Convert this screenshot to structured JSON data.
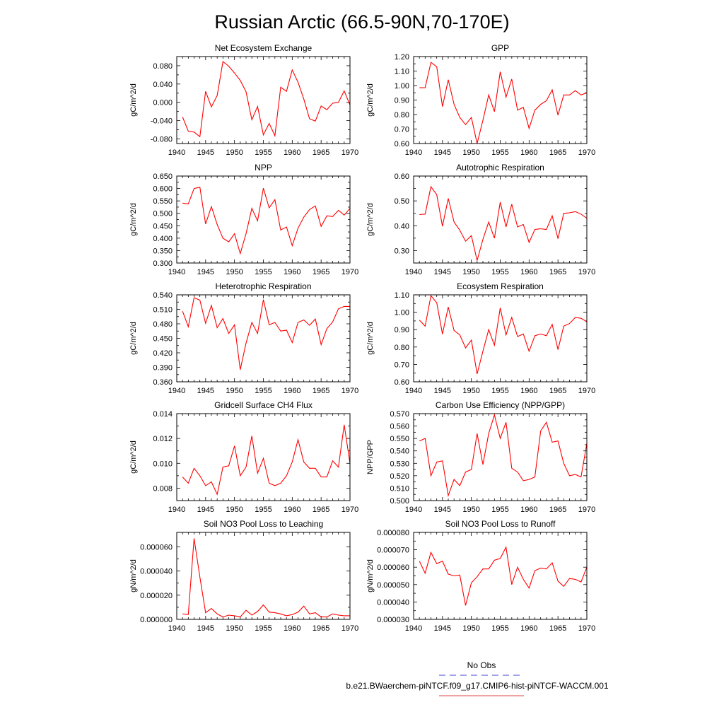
{
  "figure": {
    "title": "Russian Arctic (66.5-90N,70-170E)"
  },
  "legend": {
    "items": [
      {
        "label": "No Obs",
        "color": "#6a6ad8",
        "dash": "dashed"
      },
      {
        "label": "b.e21.BWaerchem-piNTCF.f09_g17.CMIP6-hist-piNTCF-WACCM.001",
        "color": "#e86a6a",
        "dash": "solid"
      }
    ]
  },
  "chart_data": [
    {
      "type": "line",
      "title": "Net Ecosystem Exchange",
      "ylabel": "gC/m^2/d",
      "xlim": [
        1940,
        1970
      ],
      "xticks": [
        "1940",
        "1945",
        "1950",
        "1955",
        "1960",
        "1965",
        "1970"
      ],
      "ylim": [
        -0.09,
        0.1
      ],
      "yticks": [
        "-0.080",
        "-0.040",
        "0.000",
        "0.040",
        "0.080"
      ],
      "series": [
        {
          "color": "#ff0000",
          "x": [
            1941,
            1942,
            1943,
            1944,
            1945,
            1946,
            1947,
            1948,
            1949,
            1950,
            1951,
            1952,
            1953,
            1954,
            1955,
            1956,
            1957,
            1958,
            1959,
            1960,
            1961,
            1962,
            1963,
            1964,
            1965,
            1966,
            1967,
            1968,
            1969,
            1970
          ],
          "y": [
            -0.032,
            -0.063,
            -0.065,
            -0.075,
            0.024,
            -0.01,
            0.015,
            0.089,
            0.079,
            0.064,
            0.048,
            0.023,
            -0.038,
            -0.009,
            -0.071,
            -0.046,
            -0.073,
            0.033,
            0.024,
            0.071,
            0.044,
            0.007,
            -0.036,
            -0.041,
            -0.008,
            -0.016,
            -0.002,
            0.0,
            0.025,
            -0.006
          ]
        }
      ]
    },
    {
      "type": "line",
      "title": "GPP",
      "ylabel": "gC/m^2/d",
      "xlim": [
        1940,
        1970
      ],
      "xticks": [
        "1940",
        "1945",
        "1950",
        "1955",
        "1960",
        "1965",
        "1970"
      ],
      "ylim": [
        0.6,
        1.2
      ],
      "yticks": [
        "0.60",
        "0.70",
        "0.80",
        "0.90",
        "1.00",
        "1.10",
        "1.20"
      ],
      "series": [
        {
          "color": "#ff0000",
          "x": [
            1941,
            1942,
            1943,
            1944,
            1945,
            1946,
            1947,
            1948,
            1949,
            1950,
            1951,
            1952,
            1953,
            1954,
            1955,
            1956,
            1957,
            1958,
            1959,
            1960,
            1961,
            1962,
            1963,
            1964,
            1965,
            1966,
            1967,
            1968,
            1969,
            1970
          ],
          "y": [
            0.985,
            0.985,
            1.16,
            1.13,
            0.855,
            1.04,
            0.87,
            0.78,
            0.73,
            0.78,
            0.6,
            0.76,
            0.935,
            0.82,
            1.095,
            0.92,
            1.045,
            0.83,
            0.85,
            0.705,
            0.83,
            0.87,
            0.895,
            0.97,
            0.795,
            0.935,
            0.935,
            0.965,
            0.935,
            0.95
          ]
        }
      ]
    },
    {
      "type": "line",
      "title": "NPP",
      "ylabel": "gC/m^2/d",
      "xlim": [
        1940,
        1970
      ],
      "xticks": [
        "1940",
        "1945",
        "1950",
        "1955",
        "1960",
        "1965",
        "1970"
      ],
      "ylim": [
        0.3,
        0.65
      ],
      "yticks": [
        "0.300",
        "0.350",
        "0.400",
        "0.450",
        "0.500",
        "0.550",
        "0.600",
        "0.650"
      ],
      "series": [
        {
          "color": "#ff0000",
          "x": [
            1941,
            1942,
            1943,
            1944,
            1945,
            1946,
            1947,
            1948,
            1949,
            1950,
            1951,
            1952,
            1953,
            1954,
            1955,
            1956,
            1957,
            1958,
            1959,
            1960,
            1961,
            1962,
            1963,
            1964,
            1965,
            1966,
            1967,
            1968,
            1969,
            1970
          ],
          "y": [
            0.541,
            0.538,
            0.6,
            0.605,
            0.457,
            0.527,
            0.455,
            0.4,
            0.385,
            0.418,
            0.338,
            0.418,
            0.52,
            0.47,
            0.601,
            0.522,
            0.555,
            0.433,
            0.445,
            0.37,
            0.44,
            0.485,
            0.515,
            0.53,
            0.447,
            0.49,
            0.487,
            0.512,
            0.493,
            0.52
          ]
        }
      ]
    },
    {
      "type": "line",
      "title": "Autotrophic Respiration",
      "ylabel": "gC/m^2/d",
      "xlim": [
        1940,
        1970
      ],
      "xticks": [
        "1940",
        "1945",
        "1950",
        "1955",
        "1960",
        "1965",
        "1970"
      ],
      "ylim": [
        0.25,
        0.6
      ],
      "yticks": [
        "0.30",
        "0.40",
        "0.50",
        "0.60"
      ],
      "series": [
        {
          "color": "#ff0000",
          "x": [
            1941,
            1942,
            1943,
            1944,
            1945,
            1946,
            1947,
            1948,
            1949,
            1950,
            1951,
            1952,
            1953,
            1954,
            1955,
            1956,
            1957,
            1958,
            1959,
            1960,
            1961,
            1962,
            1963,
            1964,
            1965,
            1966,
            1967,
            1968,
            1969,
            1970
          ],
          "y": [
            0.445,
            0.447,
            0.557,
            0.525,
            0.398,
            0.51,
            0.415,
            0.382,
            0.338,
            0.36,
            0.26,
            0.345,
            0.415,
            0.35,
            0.495,
            0.395,
            0.487,
            0.395,
            0.405,
            0.333,
            0.385,
            0.388,
            0.385,
            0.44,
            0.348,
            0.45,
            0.452,
            0.457,
            0.447,
            0.43
          ]
        }
      ]
    },
    {
      "type": "line",
      "title": "Heterotrophic Respiration",
      "ylabel": "gC/m^2/d",
      "xlim": [
        1940,
        1970
      ],
      "xticks": [
        "1940",
        "1945",
        "1950",
        "1955",
        "1960",
        "1965",
        "1970"
      ],
      "ylim": [
        0.36,
        0.54
      ],
      "yticks": [
        "0.360",
        "0.390",
        "0.420",
        "0.450",
        "0.480",
        "0.510",
        "0.540"
      ],
      "series": [
        {
          "color": "#ff0000",
          "x": [
            1941,
            1942,
            1943,
            1944,
            1945,
            1946,
            1947,
            1948,
            1949,
            1950,
            1951,
            1952,
            1953,
            1954,
            1955,
            1956,
            1957,
            1958,
            1959,
            1960,
            1961,
            1962,
            1963,
            1964,
            1965,
            1966,
            1967,
            1968,
            1969,
            1970
          ],
          "y": [
            0.506,
            0.474,
            0.534,
            0.529,
            0.481,
            0.518,
            0.472,
            0.491,
            0.46,
            0.478,
            0.385,
            0.44,
            0.483,
            0.46,
            0.53,
            0.478,
            0.483,
            0.465,
            0.467,
            0.441,
            0.483,
            0.488,
            0.477,
            0.49,
            0.437,
            0.47,
            0.484,
            0.511,
            0.516,
            0.516
          ]
        }
      ]
    },
    {
      "type": "line",
      "title": "Ecosystem Respiration",
      "ylabel": "gC/m^2/d",
      "xlim": [
        1940,
        1970
      ],
      "xticks": [
        "1940",
        "1945",
        "1950",
        "1955",
        "1960",
        "1965",
        "1970"
      ],
      "ylim": [
        0.6,
        1.1
      ],
      "yticks": [
        "0.60",
        "0.70",
        "0.80",
        "0.90",
        "1.00",
        "1.10"
      ],
      "series": [
        {
          "color": "#ff0000",
          "x": [
            1941,
            1942,
            1943,
            1944,
            1945,
            1946,
            1947,
            1948,
            1949,
            1950,
            1951,
            1952,
            1953,
            1954,
            1955,
            1956,
            1957,
            1958,
            1959,
            1960,
            1961,
            1962,
            1963,
            1964,
            1965,
            1966,
            1967,
            1968,
            1969,
            1970
          ],
          "y": [
            0.955,
            0.92,
            1.095,
            1.055,
            0.875,
            1.03,
            0.895,
            0.87,
            0.795,
            0.84,
            0.645,
            0.775,
            0.9,
            0.81,
            1.025,
            0.87,
            0.97,
            0.86,
            0.875,
            0.775,
            0.865,
            0.875,
            0.865,
            0.93,
            0.785,
            0.92,
            0.935,
            0.97,
            0.965,
            0.945
          ]
        }
      ]
    },
    {
      "type": "line",
      "title": "Gridcell Surface CH4 Flux",
      "ylabel": "gC/m^2/d",
      "xlim": [
        1940,
        1970
      ],
      "xticks": [
        "1940",
        "1945",
        "1950",
        "1955",
        "1960",
        "1965",
        "1970"
      ],
      "ylim": [
        0.007,
        0.014
      ],
      "yticks": [
        "0.008",
        "0.010",
        "0.012",
        "0.014"
      ],
      "series": [
        {
          "color": "#ff0000",
          "x": [
            1941,
            1942,
            1943,
            1944,
            1945,
            1946,
            1947,
            1948,
            1949,
            1950,
            1951,
            1952,
            1953,
            1954,
            1955,
            1956,
            1957,
            1958,
            1959,
            1960,
            1961,
            1962,
            1963,
            1964,
            1965,
            1966,
            1967,
            1968,
            1969,
            1970
          ],
          "y": [
            0.0089,
            0.0084,
            0.0096,
            0.009,
            0.0082,
            0.0085,
            0.0075,
            0.0097,
            0.0098,
            0.0114,
            0.009,
            0.0097,
            0.0122,
            0.0092,
            0.0104,
            0.0084,
            0.0082,
            0.0084,
            0.009,
            0.0101,
            0.0119,
            0.0101,
            0.0096,
            0.0096,
            0.0089,
            0.0089,
            0.0102,
            0.0097,
            0.0131,
            0.01
          ]
        }
      ]
    },
    {
      "type": "line",
      "title": "Carbon Use Efficiency (NPP/GPP)",
      "ylabel": "NPP/GPP",
      "xlim": [
        1940,
        1970
      ],
      "xticks": [
        "1940",
        "1945",
        "1950",
        "1955",
        "1960",
        "1965",
        "1970"
      ],
      "ylim": [
        0.5,
        0.57
      ],
      "yticks": [
        "0.500",
        "0.510",
        "0.520",
        "0.530",
        "0.540",
        "0.550",
        "0.560",
        "0.570"
      ],
      "series": [
        {
          "color": "#ff0000",
          "x": [
            1941,
            1942,
            1943,
            1944,
            1945,
            1946,
            1947,
            1948,
            1949,
            1950,
            1951,
            1952,
            1953,
            1954,
            1955,
            1956,
            1957,
            1958,
            1959,
            1960,
            1961,
            1962,
            1963,
            1964,
            1965,
            1966,
            1967,
            1968,
            1969,
            1970
          ],
          "y": [
            0.548,
            0.55,
            0.52,
            0.531,
            0.532,
            0.504,
            0.517,
            0.512,
            0.523,
            0.525,
            0.554,
            0.529,
            0.554,
            0.569,
            0.55,
            0.563,
            0.526,
            0.523,
            0.516,
            0.517,
            0.519,
            0.556,
            0.563,
            0.547,
            0.548,
            0.53,
            0.52,
            0.521,
            0.519,
            0.546
          ]
        }
      ]
    },
    {
      "type": "line",
      "title": "Soil NO3 Pool Loss to Leaching",
      "ylabel": "gN/m^2/d",
      "xlim": [
        1940,
        1970
      ],
      "xticks": [
        "1940",
        "1945",
        "1950",
        "1955",
        "1960",
        "1965",
        "1970"
      ],
      "ylim": [
        0,
        7.2e-05
      ],
      "yticks": [
        "0.000000",
        "0.000020",
        "0.000040",
        "0.000060"
      ],
      "series": [
        {
          "color": "#ff0000",
          "x": [
            1941,
            1942,
            1943,
            1944,
            1945,
            1946,
            1947,
            1948,
            1949,
            1950,
            1951,
            1952,
            1953,
            1954,
            1955,
            1956,
            1957,
            1958,
            1959,
            1960,
            1961,
            1962,
            1963,
            1964,
            1965,
            1966,
            1967,
            1968,
            1969,
            1970
          ],
          "y": [
            4.5e-06,
            4e-06,
            6.7e-05,
            3.5e-05,
            5.5e-06,
            9e-06,
            4.5e-06,
            2e-06,
            3.5e-06,
            3e-06,
            2e-06,
            7.5e-06,
            3.5e-06,
            6.5e-06,
            1.2e-05,
            6e-06,
            5.5e-06,
            4.5e-06,
            3e-06,
            4e-06,
            6e-06,
            1.1e-05,
            4.5e-06,
            5.5e-06,
            2e-06,
            2e-06,
            4.5e-06,
            3.5e-06,
            3e-06,
            3e-06
          ]
        }
      ]
    },
    {
      "type": "line",
      "title": "Soil NO3 Pool Loss to Runoff",
      "ylabel": "gN/m^2/d",
      "xlim": [
        1940,
        1970
      ],
      "xticks": [
        "1940",
        "1945",
        "1950",
        "1955",
        "1960",
        "1965",
        "1970"
      ],
      "ylim": [
        3e-05,
        8e-05
      ],
      "yticks": [
        "0.000030",
        "0.000040",
        "0.000050",
        "0.000060",
        "0.000070",
        "0.000080"
      ],
      "series": [
        {
          "color": "#ff0000",
          "x": [
            1941,
            1942,
            1943,
            1944,
            1945,
            1946,
            1947,
            1948,
            1949,
            1950,
            1951,
            1952,
            1953,
            1954,
            1955,
            1956,
            1957,
            1958,
            1959,
            1960,
            1961,
            1962,
            1963,
            1964,
            1965,
            1966,
            1967,
            1968,
            1969,
            1970
          ],
          "y": [
            6.35e-05,
            5.65e-05,
            6.85e-05,
            6.2e-05,
            6.35e-05,
            5.6e-05,
            5.5e-05,
            5.55e-05,
            3.8e-05,
            5.1e-05,
            5.45e-05,
            5.9e-05,
            5.9e-05,
            6.4e-05,
            6.5e-05,
            7.15e-05,
            5e-05,
            6e-05,
            5.3e-05,
            4.8e-05,
            5.8e-05,
            5.95e-05,
            5.9e-05,
            6.25e-05,
            5.2e-05,
            4.9e-05,
            5.35e-05,
            5.3e-05,
            5.15e-05,
            6e-05
          ]
        }
      ]
    }
  ]
}
